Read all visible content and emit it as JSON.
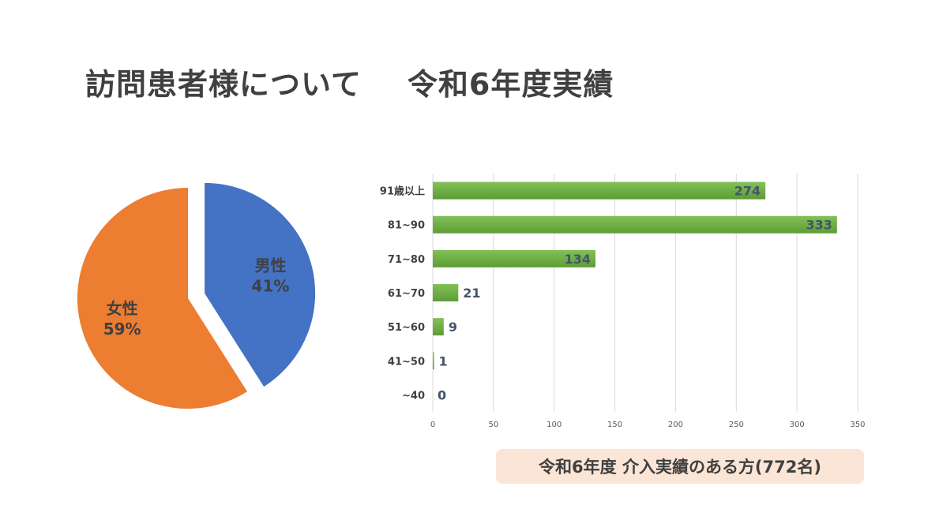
{
  "title": {
    "main": "訪問患者様について",
    "sub": "令和6年度実績"
  },
  "caption": "令和6年度 介入実績のある方(772名)",
  "chart_data": [
    {
      "type": "pie",
      "slices": [
        {
          "label": "男性",
          "value": 41,
          "value_label": "41%",
          "color": "#4472c4",
          "exploded": true
        },
        {
          "label": "女性",
          "value": 59,
          "value_label": "59%",
          "color": "#ed7d31",
          "exploded": false
        }
      ]
    },
    {
      "type": "bar",
      "orientation": "horizontal",
      "categories": [
        "91歳以上",
        "81~90",
        "71~80",
        "61~70",
        "51~60",
        "41~50",
        "~40"
      ],
      "values": [
        274,
        333,
        134,
        21,
        9,
        1,
        0
      ],
      "xticks": [
        0,
        50,
        100,
        150,
        200,
        250,
        300,
        350
      ],
      "xlim": [
        0,
        350
      ],
      "grid": true,
      "bar_color": "#70ad47"
    }
  ]
}
